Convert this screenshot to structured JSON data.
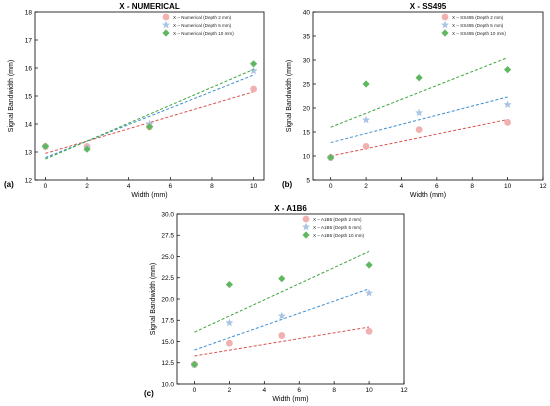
{
  "chart_data": [
    {
      "type": "scatter",
      "panel_label": "(a)",
      "title": "X - NUMERICAL",
      "xlabel": "Width (mm)",
      "ylabel": "Signal Bandwidth (mm)",
      "xlim": [
        -0.5,
        10.5
      ],
      "ylim": [
        12,
        18
      ],
      "xticks": [
        0,
        2,
        4,
        6,
        8,
        10
      ],
      "yticks": [
        12,
        13,
        14,
        15,
        16,
        17,
        18
      ],
      "grid": false,
      "legend": "top-right",
      "series": [
        {
          "name": "X – Numerical (Depth 2 mm)",
          "marker": "circle",
          "color": "#f0a8a8",
          "line_color": "#d9534f",
          "x": [
            0,
            2,
            5,
            10
          ],
          "y": [
            13.2,
            13.2,
            13.9,
            15.25
          ],
          "fit": [
            12.95,
            15.15
          ]
        },
        {
          "name": "X – Numerical (Depth 5 mm)",
          "marker": "star",
          "color": "#a9c4e4",
          "line_color": "#3d8fd1",
          "x": [
            0,
            2,
            5,
            10
          ],
          "y": [
            13.2,
            13.15,
            14.0,
            15.9
          ],
          "fit": [
            12.8,
            15.75
          ]
        },
        {
          "name": "X – Numerical (Depth 10 mm)",
          "marker": "diamond",
          "color": "#5fb85f",
          "line_color": "#3aa63a",
          "x": [
            0,
            2,
            5,
            10
          ],
          "y": [
            13.2,
            13.1,
            13.9,
            16.15
          ],
          "fit": [
            12.75,
            15.95
          ]
        }
      ]
    },
    {
      "type": "scatter",
      "panel_label": "(b)",
      "title": "X - SS495",
      "xlabel": "Width (mm)",
      "ylabel": "Signal Bandwidth (mm)",
      "xlim": [
        -1,
        12
      ],
      "ylim": [
        5,
        40
      ],
      "xticks": [
        0,
        2,
        4,
        6,
        8,
        10,
        12
      ],
      "yticks": [
        5,
        10,
        15,
        20,
        25,
        30,
        35,
        40
      ],
      "grid": false,
      "legend": "top-right",
      "series": [
        {
          "name": "X – SS495 (Depth 2 mm)",
          "marker": "circle",
          "color": "#f0a8a8",
          "line_color": "#d9534f",
          "x": [
            0,
            2,
            5,
            10
          ],
          "y": [
            9.7,
            12.0,
            15.5,
            17.0
          ],
          "fit": [
            10.0,
            17.6
          ]
        },
        {
          "name": "X – SS495 (Depth 5 mm)",
          "marker": "star",
          "color": "#a9c4e4",
          "line_color": "#3d8fd1",
          "x": [
            0,
            2,
            5,
            10
          ],
          "y": [
            9.7,
            17.5,
            19.0,
            20.7
          ],
          "fit": [
            12.8,
            22.3
          ]
        },
        {
          "name": "X – SS495 (Depth 10 mm)",
          "marker": "diamond",
          "color": "#5fb85f",
          "line_color": "#3aa63a",
          "x": [
            0,
            2,
            5,
            10
          ],
          "y": [
            9.7,
            25.0,
            26.3,
            28.0
          ],
          "fit": [
            16.0,
            30.5
          ]
        }
      ]
    },
    {
      "type": "scatter",
      "panel_label": "(c)",
      "title": "X - A1B6",
      "xlabel": "Width (mm)",
      "ylabel": "Signal Bandwidth (mm)",
      "xlim": [
        -1,
        12
      ],
      "ylim": [
        10,
        30
      ],
      "xticks": [
        0,
        2,
        4,
        6,
        8,
        10,
        12
      ],
      "yticks": [
        10.0,
        12.5,
        15.0,
        17.5,
        20.0,
        22.5,
        25.0,
        27.5,
        30.0
      ],
      "grid": false,
      "legend": "top-right",
      "series": [
        {
          "name": "X – A1B6 (Depth 2 mm)",
          "marker": "circle",
          "color": "#f0a8a8",
          "line_color": "#d9534f",
          "x": [
            0,
            2,
            5,
            10
          ],
          "y": [
            12.3,
            14.8,
            15.7,
            16.2
          ],
          "fit": [
            13.3,
            16.7
          ]
        },
        {
          "name": "X – A1B6 (Depth 5 mm)",
          "marker": "star",
          "color": "#a9c4e4",
          "line_color": "#3d8fd1",
          "x": [
            0,
            2,
            5,
            10
          ],
          "y": [
            12.3,
            17.2,
            18.0,
            20.7
          ],
          "fit": [
            14.0,
            21.2
          ]
        },
        {
          "name": "X – A1B6 (Depth 10 mm)",
          "marker": "diamond",
          "color": "#5fb85f",
          "line_color": "#3aa63a",
          "x": [
            0,
            2,
            5,
            10
          ],
          "y": [
            12.3,
            21.7,
            22.4,
            24.0
          ],
          "fit": [
            16.1,
            25.6
          ]
        }
      ]
    }
  ]
}
